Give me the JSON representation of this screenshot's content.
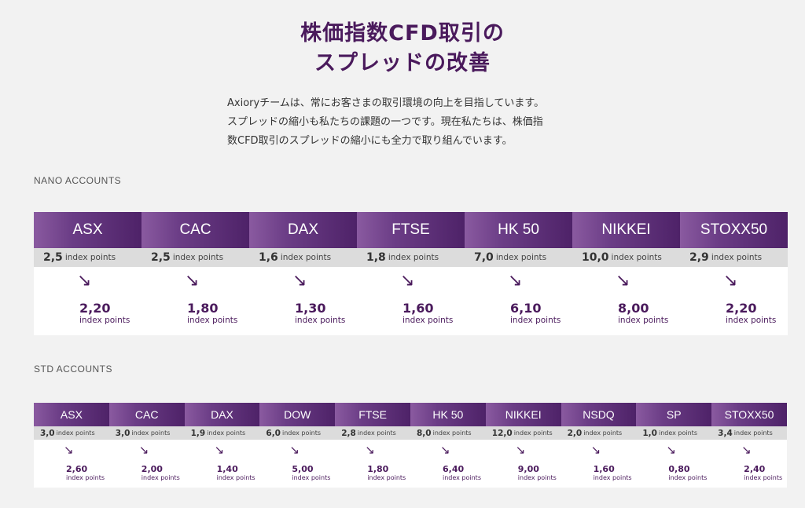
{
  "title": {
    "line1": "株価指数CFD取引の",
    "line2": "スプレッドの改善"
  },
  "intro": {
    "line1": "Axioryチームは、常にお客さまの取引環境の向上を目指しています。",
    "line2": "スプレッドの縮小も私たちの課題の一つです。現在私たちは、株価指",
    "line3": "数CFD取引のスプレッドの縮小にも全力で取り組んでいます。"
  },
  "nano": {
    "label": "NANO ACCOUNTS",
    "items": [
      {
        "name": "ASX",
        "old": "2,5",
        "old_unit": "index points",
        "new": "2,20",
        "new_unit": "index points"
      },
      {
        "name": "CAC",
        "old": "2,5",
        "old_unit": "index points",
        "new": "1,80",
        "new_unit": "index points"
      },
      {
        "name": "DAX",
        "old": "1,6",
        "old_unit": "index points",
        "new": "1,30",
        "new_unit": "index points"
      },
      {
        "name": "FTSE",
        "old": "1,8",
        "old_unit": "index points",
        "new": "1,60",
        "new_unit": "index points"
      },
      {
        "name": "HK 50",
        "old": "7,0",
        "old_unit": "index points",
        "new": "6,10",
        "new_unit": "index points"
      },
      {
        "name": "NIKKEI",
        "old": "10,0",
        "old_unit": "index points",
        "new": "8,00",
        "new_unit": "index points"
      },
      {
        "name": "STOXX50",
        "old": "2,9",
        "old_unit": "index points",
        "new": "2,20",
        "new_unit": "index points"
      }
    ]
  },
  "std": {
    "label": "STD ACCOUNTS",
    "items": [
      {
        "name": "ASX",
        "old": "3,0",
        "old_unit": "index points",
        "new": "2,60",
        "new_unit": "index points"
      },
      {
        "name": "CAC",
        "old": "3,0",
        "old_unit": "index points",
        "new": "2,00",
        "new_unit": "index points"
      },
      {
        "name": "DAX",
        "old": "1,9",
        "old_unit": "index points",
        "new": "1,40",
        "new_unit": "index points"
      },
      {
        "name": "DOW",
        "old": "6,0",
        "old_unit": "index points",
        "new": "5,00",
        "new_unit": "index points"
      },
      {
        "name": "FTSE",
        "old": "2,8",
        "old_unit": "index points",
        "new": "1,80",
        "new_unit": "index points"
      },
      {
        "name": "HK 50",
        "old": "8,0",
        "old_unit": "index points",
        "new": "6,40",
        "new_unit": "index points"
      },
      {
        "name": "NIKKEI",
        "old": "12,0",
        "old_unit": "index points",
        "new": "9,00",
        "new_unit": "index points"
      },
      {
        "name": "NSDQ",
        "old": "2,0",
        "old_unit": "index points",
        "new": "1,60",
        "new_unit": "index points"
      },
      {
        "name": "SP",
        "old": "1,0",
        "old_unit": "index points",
        "new": "0,80",
        "new_unit": "index points"
      },
      {
        "name": "STOXX50",
        "old": "3,4",
        "old_unit": "index points",
        "new": "2,40",
        "new_unit": "index points"
      }
    ]
  },
  "icons": {
    "decrease_arrow": "arrow-down-right-icon"
  },
  "colors": {
    "brand_purple": "#4a1a5c",
    "header_gradient_start": "#8a5aa0",
    "header_gradient_end": "#4e2268",
    "old_row_bg": "#dcdcdc"
  }
}
